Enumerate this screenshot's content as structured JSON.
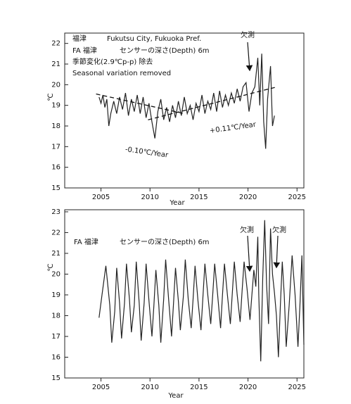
{
  "chart_data": [
    {
      "type": "line",
      "x_label": "Year",
      "y_label": "℃",
      "annotations": [
        {
          "text": "福津"
        },
        {
          "text": "Fukutsu City, Fukuoka Pref."
        },
        {
          "text": "FA 福津"
        },
        {
          "text": "センサーの深さ(Depth) 6m"
        },
        {
          "text": "季節変化(2.9℃p-p) 除去"
        },
        {
          "text": "Seasonal variation removed"
        },
        {
          "text": "欠測"
        }
      ],
      "xlim": [
        2001.3,
        2025.7
      ],
      "xticks": [
        2005,
        2010,
        2015,
        2020,
        2025
      ],
      "ylim": [
        15,
        22.5
      ],
      "yticks": [
        15,
        16,
        17,
        18,
        19,
        20,
        21,
        22
      ],
      "series": [
        {
          "color": "#222222",
          "x": [
            2004.8,
            2005.0,
            2005.2,
            2005.4,
            2005.6,
            2005.8,
            2006.0,
            2006.3,
            2006.6,
            2006.9,
            2007.2,
            2007.5,
            2007.8,
            2008.1,
            2008.4,
            2008.7,
            2009.0,
            2009.3,
            2009.6,
            2009.9,
            2010.2,
            2010.5,
            2010.8,
            2011.1,
            2011.4,
            2011.7,
            2012.0,
            2012.3,
            2012.6,
            2012.9,
            2013.2,
            2013.5,
            2013.8,
            2014.1,
            2014.4,
            2014.7,
            2015.0,
            2015.3,
            2015.6,
            2015.9,
            2016.2,
            2016.5,
            2016.8,
            2017.1,
            2017.4,
            2017.7,
            2018.0,
            2018.3,
            2018.6,
            2018.9,
            2019.2,
            2019.5,
            2019.8,
            2020.1,
            2020.4,
            2020.7,
            2021.0,
            2021.2,
            2021.4,
            2021.6,
            2021.8,
            2022.0,
            2022.3,
            2022.5,
            2022.7
          ],
          "values": [
            19.4,
            19.1,
            19.5,
            18.9,
            19.3,
            18.0,
            18.6,
            19.2,
            18.6,
            19.4,
            18.8,
            19.6,
            18.5,
            19.3,
            18.7,
            19.5,
            18.6,
            19.4,
            18.4,
            19.1,
            18.2,
            17.4,
            18.7,
            19.3,
            18.3,
            18.9,
            18.2,
            19.0,
            18.4,
            19.2,
            18.5,
            19.4,
            18.6,
            19.0,
            18.3,
            19.1,
            18.7,
            19.5,
            18.6,
            19.2,
            18.8,
            19.6,
            18.7,
            19.7,
            18.9,
            19.5,
            19.0,
            19.6,
            19.1,
            19.8,
            19.2,
            19.9,
            20.1,
            18.7,
            19.6,
            19.9,
            21.3,
            19.0,
            21.5,
            18.2,
            16.9,
            19.3,
            20.9,
            18.0,
            18.5
          ]
        }
      ],
      "trend_lines": [
        {
          "label": "-0.10℃/Year",
          "x": [
            2004.5,
            2013.5
          ],
          "values": [
            19.55,
            18.6
          ]
        },
        {
          "label": "+0.11℃/Year",
          "x": [
            2009.8,
            2023.0
          ],
          "values": [
            18.3,
            19.9
          ]
        }
      ]
    },
    {
      "type": "line",
      "x_label": "Year",
      "y_label": "℃",
      "annotations": [
        {
          "text": "FA 福津"
        },
        {
          "text": "センサーの深さ(Depth) 6m"
        },
        {
          "text": "欠測"
        },
        {
          "text": "欠測"
        }
      ],
      "xlim": [
        2001.3,
        2025.7
      ],
      "xticks": [
        2005,
        2010,
        2015,
        2020,
        2025
      ],
      "ylim": [
        15,
        23.1
      ],
      "yticks": [
        15,
        16,
        17,
        18,
        19,
        20,
        21,
        22,
        23
      ],
      "series": [
        {
          "color": "#222222",
          "x": [
            2004.8,
            2005.1,
            2005.5,
            2005.9,
            2006.1,
            2006.4,
            2006.6,
            2006.9,
            2007.1,
            2007.4,
            2007.6,
            2007.9,
            2008.1,
            2008.4,
            2008.6,
            2008.9,
            2009.1,
            2009.4,
            2009.6,
            2009.9,
            2010.2,
            2010.4,
            2010.6,
            2010.9,
            2011.1,
            2011.4,
            2011.6,
            2011.9,
            2012.2,
            2012.4,
            2012.6,
            2012.9,
            2013.1,
            2013.4,
            2013.6,
            2013.9,
            2014.2,
            2014.4,
            2014.6,
            2014.9,
            2015.2,
            2015.4,
            2015.6,
            2015.9,
            2016.2,
            2016.4,
            2016.6,
            2016.9,
            2017.2,
            2017.4,
            2017.6,
            2017.9,
            2018.2,
            2018.4,
            2018.6,
            2018.9,
            2019.2,
            2019.4,
            2019.6,
            2019.9,
            2020.2,
            2020.4,
            2020.6,
            2020.8,
            2021.0,
            2021.1,
            2021.3,
            2021.5,
            2021.7,
            2021.9,
            2022.1,
            2022.3,
            2022.5,
            2022.7,
            2022.9,
            2023.1,
            2023.3,
            2023.5,
            2023.7,
            2023.9,
            2024.2,
            2024.5,
            2024.8,
            2025.1,
            2025.3,
            2025.5,
            2025.7
          ],
          "values": [
            17.9,
            19.0,
            20.4,
            18.5,
            16.7,
            18.2,
            20.3,
            18.6,
            16.9,
            18.6,
            20.5,
            18.8,
            17.2,
            18.5,
            20.6,
            18.6,
            16.8,
            18.6,
            20.5,
            18.7,
            17.0,
            18.5,
            20.2,
            18.5,
            16.7,
            18.8,
            20.7,
            18.8,
            17.0,
            18.6,
            20.3,
            18.7,
            17.3,
            18.9,
            20.7,
            18.8,
            17.4,
            18.8,
            20.4,
            18.7,
            17.3,
            18.9,
            20.5,
            19.0,
            17.6,
            19.0,
            20.5,
            19.0,
            17.4,
            19.0,
            20.5,
            19.0,
            17.6,
            19.1,
            20.6,
            19.0,
            17.7,
            19.2,
            20.6,
            19.3,
            17.8,
            19.0,
            20.2,
            19.4,
            21.8,
            19.0,
            15.8,
            19.8,
            22.6,
            19.5,
            17.6,
            22.2,
            20.0,
            19.1,
            18.0,
            16.0,
            18.5,
            20.6,
            19.0,
            16.5,
            18.5,
            20.9,
            19.0,
            16.5,
            18.5,
            20.9,
            16.6
          ]
        }
      ]
    }
  ]
}
